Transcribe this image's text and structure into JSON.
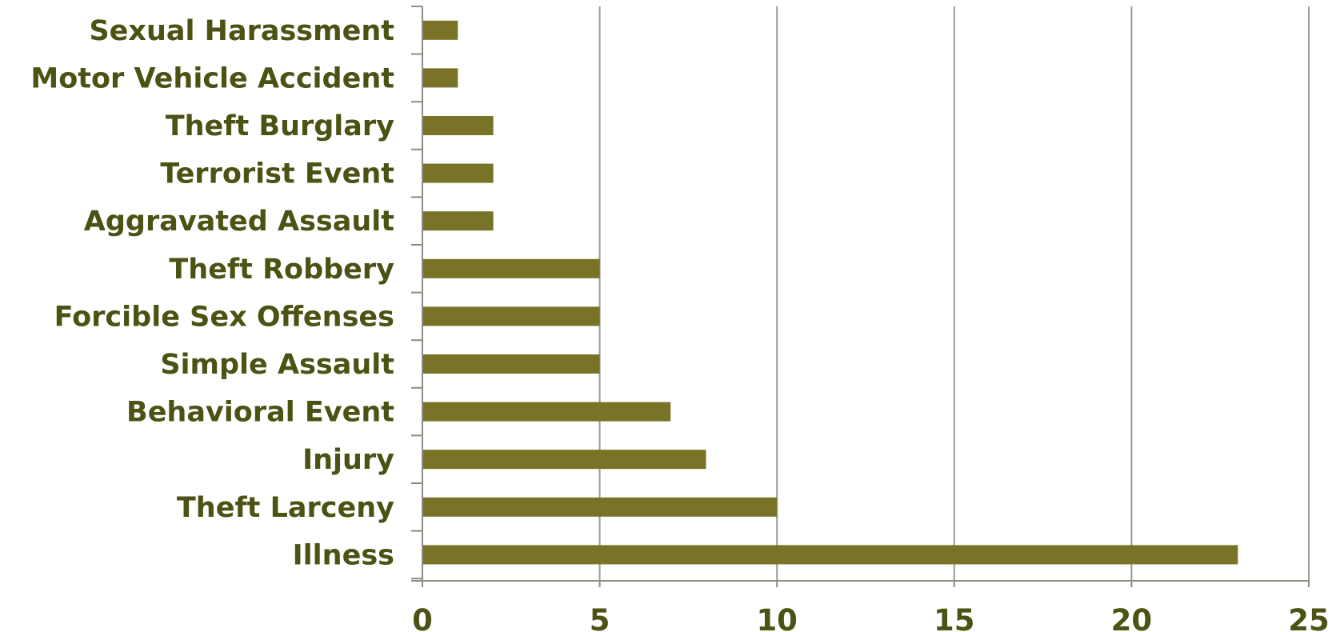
{
  "chart_data": {
    "type": "bar",
    "orientation": "horizontal",
    "title": "",
    "xlabel": "",
    "ylabel": "",
    "categories": [
      "Sexual Harassment",
      "Motor Vehicle Accident",
      "Theft Burglary",
      "Terrorist Event",
      "Aggravated Assault",
      "Theft Robbery",
      "Forcible Sex Offenses",
      "Simple Assault",
      "Behavioral Event",
      "Injury",
      "Theft Larceny",
      "Illness"
    ],
    "values": [
      1,
      1,
      2,
      2,
      2,
      5,
      5,
      5,
      7,
      8,
      10,
      23
    ],
    "xlim": [
      0,
      25
    ],
    "xticks": [
      "0",
      "5",
      "10",
      "15",
      "20",
      "25"
    ],
    "grid": "vertical",
    "legend": "none",
    "colors": {
      "bar": "#787326",
      "text": "#4c5213",
      "grid": "#9a9a8e",
      "axis": "#8c8c80"
    }
  }
}
